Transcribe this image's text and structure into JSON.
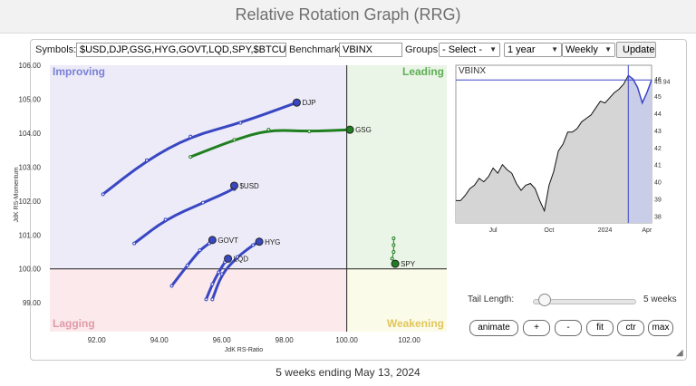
{
  "page": {
    "title": "Relative Rotation Graph (RRG)"
  },
  "controls": {
    "symbols_label": "Symbols:",
    "symbols_value": "$USD,DJP,GSG,HYG,GOVT,LQD,SPY,$BTCUSD",
    "benchmark_label": "Benchmark:",
    "benchmark_value": "VBINX",
    "groups_label": "Groups:",
    "groups_selected": "- Select -",
    "period_selected": "1 year",
    "frequency_selected": "Weekly",
    "update_label": "Update"
  },
  "rrg": {
    "x_axis_label": "JdK RS-Ratio",
    "y_axis_label": "JdK RS-Momentum",
    "xlim": [
      90.5,
      103.2
    ],
    "ylim": [
      98.15,
      106.0
    ],
    "x_ticks": [
      "92.00",
      "94.00",
      "96.00",
      "98.00",
      "100.00",
      "102.00"
    ],
    "y_ticks": [
      "106.00",
      "105.00",
      "104.00",
      "103.00",
      "102.00",
      "101.00",
      "100.00",
      "99.00"
    ],
    "quadrants": {
      "improving": "Improving",
      "leading": "Leading",
      "lagging": "Lagging",
      "weakening": "Weakening"
    },
    "colors": {
      "improving_bg": "#ecebf7",
      "leading_bg": "#eaf4e7",
      "lagging_bg": "#fbe9ec",
      "weakening_bg": "#fbfbe9",
      "improving_text": "#7b7fd8",
      "leading_text": "#5fae54",
      "lagging_text": "#e09aa6",
      "weakening_text": "#e1c65a",
      "blue_tail": "#3947c2",
      "green_tail": "#1f7f1f"
    },
    "series": [
      {
        "name": "DJP",
        "color": "blue",
        "points": [
          [
            92.2,
            102.2
          ],
          [
            93.6,
            103.2
          ],
          [
            95.0,
            103.9
          ],
          [
            96.6,
            104.3
          ],
          [
            98.4,
            104.9
          ]
        ]
      },
      {
        "name": "GSG",
        "color": "green",
        "points": [
          [
            95.0,
            103.3
          ],
          [
            96.4,
            103.8
          ],
          [
            97.5,
            104.1
          ],
          [
            98.8,
            104.05
          ],
          [
            100.1,
            104.1
          ]
        ]
      },
      {
        "name": "$USD",
        "color": "blue",
        "points": [
          [
            93.2,
            100.75
          ],
          [
            94.2,
            101.45
          ],
          [
            95.4,
            101.95
          ],
          [
            96.4,
            102.35
          ],
          [
            96.4,
            102.45
          ]
        ]
      },
      {
        "name": "GOVT",
        "color": "blue",
        "points": [
          [
            94.4,
            99.5
          ],
          [
            94.9,
            100.1
          ],
          [
            95.3,
            100.55
          ],
          [
            95.6,
            100.75
          ],
          [
            95.7,
            100.85
          ]
        ]
      },
      {
        "name": "HYG",
        "color": "blue",
        "points": [
          [
            95.7,
            99.1
          ],
          [
            96.0,
            99.85
          ],
          [
            96.5,
            100.35
          ],
          [
            97.0,
            100.7
          ],
          [
            97.2,
            100.8
          ]
        ]
      },
      {
        "name": "LQD",
        "color": "blue",
        "points": [
          [
            95.5,
            99.1
          ],
          [
            95.7,
            99.55
          ],
          [
            95.9,
            99.9
          ],
          [
            96.1,
            100.2
          ],
          [
            96.2,
            100.3
          ]
        ]
      },
      {
        "name": "SPY",
        "color": "green",
        "points": [
          [
            101.5,
            100.9
          ],
          [
            101.5,
            100.7
          ],
          [
            101.5,
            100.5
          ],
          [
            101.45,
            100.3
          ],
          [
            101.55,
            100.15
          ]
        ]
      }
    ]
  },
  "benchmark_chart": {
    "label": "VBINX",
    "last_value": "45.94",
    "y_ticks": [
      "46",
      "45",
      "44",
      "43",
      "42",
      "41",
      "40",
      "39",
      "38"
    ],
    "x_ticks": [
      "Jul",
      "Oct",
      "2024",
      "Apr"
    ],
    "ylim": [
      37.6,
      46.8
    ],
    "values": [
      38.9,
      38.9,
      39.2,
      39.6,
      39.8,
      40.2,
      40.0,
      40.3,
      40.8,
      40.5,
      41.0,
      40.7,
      40.5,
      39.9,
      39.5,
      39.8,
      39.9,
      39.6,
      38.9,
      38.3,
      39.8,
      40.6,
      41.8,
      42.2,
      42.9,
      42.9,
      43.1,
      43.5,
      43.7,
      43.9,
      44.3,
      44.7,
      44.6,
      44.9,
      45.2,
      45.4,
      45.7,
      46.2,
      46.0,
      45.5,
      44.6,
      45.2,
      45.94
    ],
    "highlight_weeks": 5,
    "colors": {
      "line": "#111111",
      "fill": "#d5d5d5",
      "recent_line": "#3c46c8",
      "recent_fill": "#c9cde8",
      "marker": "#3c46c8"
    }
  },
  "tail": {
    "label": "Tail Length:",
    "value_label": "5 weeks",
    "level": 0.05
  },
  "buttons": {
    "animate": "animate",
    "plus": "+",
    "minus": "-",
    "fit": "fit",
    "ctr": "ctr",
    "max": "max"
  },
  "footer": {
    "text": "5 weeks ending May 13, 2024"
  }
}
